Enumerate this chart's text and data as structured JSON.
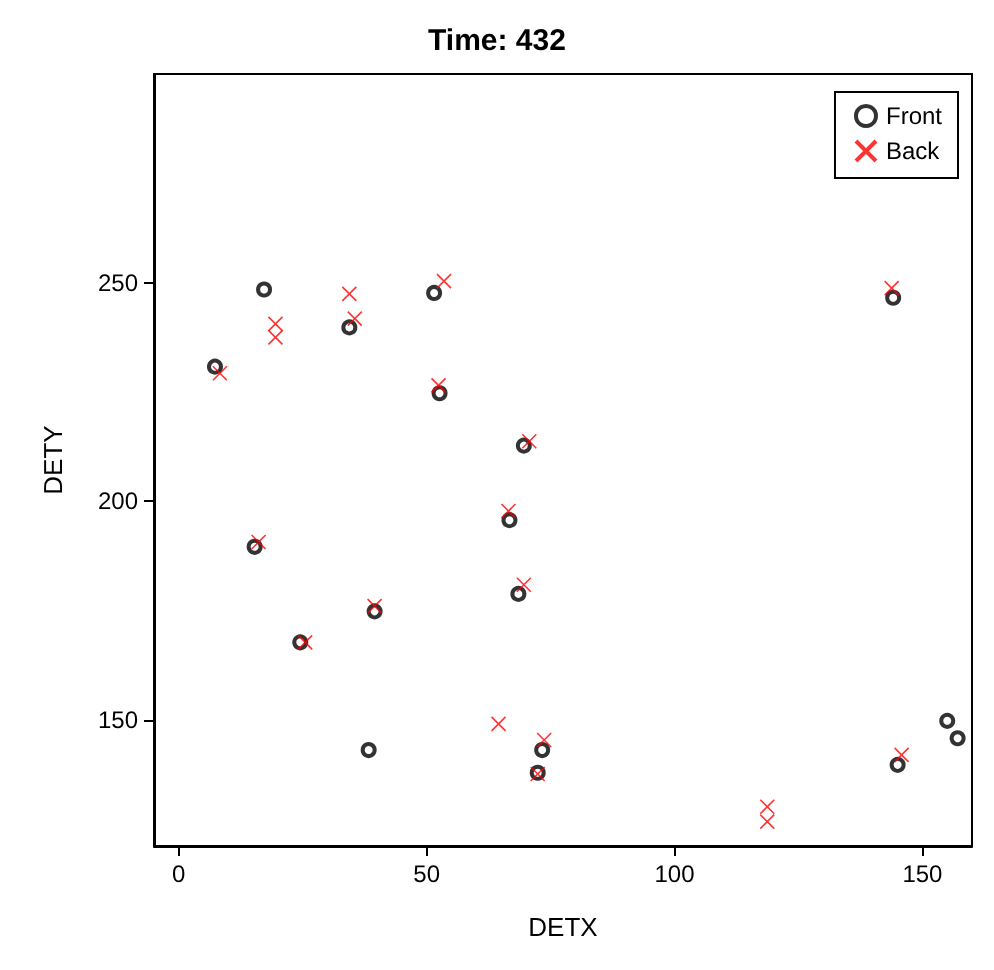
{
  "chart_data": {
    "type": "scatter",
    "title": "Time: 432",
    "xlabel": "DETX",
    "ylabel": "DETY",
    "xlim": [
      -5,
      160
    ],
    "xticks": [
      0,
      50,
      100,
      150
    ],
    "ylim": [
      121,
      298
    ],
    "yticks": [
      150,
      200,
      250
    ],
    "grid": false,
    "legend": "top right",
    "series": [
      {
        "name": "Front",
        "color": "#000000",
        "marker": "circle",
        "x": [
          7.3,
          17.2,
          34.4,
          51.5,
          52.6,
          15.3,
          24.5,
          39.5,
          38.3,
          69.6,
          66.7,
          68.5,
          73.3,
          72.4,
          144.1,
          155.0,
          157.1,
          145.0
        ],
        "values": [
          230.9,
          248.6,
          239.9,
          247.8,
          224.8,
          189.6,
          167.7,
          174.8,
          143.0,
          212.8,
          195.7,
          178.8,
          143.0,
          137.8,
          246.7,
          149.7,
          145.7,
          139.6
        ]
      },
      {
        "name": "Back",
        "color": "#ff0000",
        "marker": "cross",
        "x": [
          8.3,
          19.5,
          19.5,
          34.4,
          35.5,
          53.5,
          52.4,
          16.1,
          25.5,
          39.5,
          70.7,
          66.5,
          69.6,
          64.5,
          73.7,
          72.4,
          118.7,
          118.7,
          143.8,
          145.8
        ],
        "values": [
          229.4,
          240.7,
          237.6,
          247.6,
          241.9,
          250.5,
          226.6,
          190.7,
          167.7,
          176.0,
          213.8,
          197.8,
          180.9,
          149.0,
          145.3,
          137.5,
          130.0,
          126.6,
          248.9,
          141.9
        ]
      }
    ]
  }
}
